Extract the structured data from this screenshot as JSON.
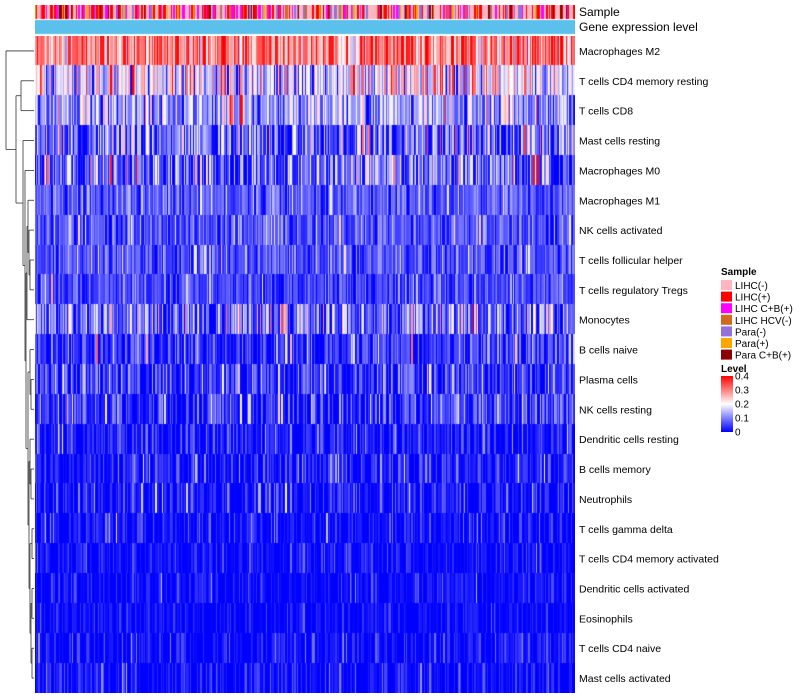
{
  "chart_data": {
    "type": "heatmap",
    "annotations": [
      {
        "name": "Sample"
      },
      {
        "name": "Gene expression level"
      }
    ],
    "rows": [
      {
        "label": "Macrophages M2",
        "mean": 0.3,
        "spread": 0.1
      },
      {
        "label": "T cells CD4 memory resting",
        "mean": 0.17,
        "spread": 0.14
      },
      {
        "label": "T cells CD8",
        "mean": 0.12,
        "spread": 0.09
      },
      {
        "label": "Mast cells resting",
        "mean": 0.07,
        "spread": 0.12
      },
      {
        "label": "Macrophages M0",
        "mean": 0.06,
        "spread": 0.12
      },
      {
        "label": "Macrophages M1",
        "mean": 0.07,
        "spread": 0.06
      },
      {
        "label": "NK cells activated",
        "mean": 0.06,
        "spread": 0.06
      },
      {
        "label": "T cells follicular helper",
        "mean": 0.06,
        "spread": 0.06
      },
      {
        "label": "T cells regulatory  Tregs",
        "mean": 0.05,
        "spread": 0.05
      },
      {
        "label": "Monocytes",
        "mean": 0.08,
        "spread": 0.12
      },
      {
        "label": "B cells naive",
        "mean": 0.03,
        "spread": 0.08
      },
      {
        "label": "Plasma cells",
        "mean": 0.04,
        "spread": 0.08
      },
      {
        "label": "NK cells resting",
        "mean": 0.03,
        "spread": 0.09
      },
      {
        "label": "Dendritic cells resting",
        "mean": 0.015,
        "spread": 0.06
      },
      {
        "label": "B cells memory",
        "mean": 0.015,
        "spread": 0.06
      },
      {
        "label": "Neutrophils",
        "mean": 0.01,
        "spread": 0.06
      },
      {
        "label": "T cells gamma delta",
        "mean": 0.005,
        "spread": 0.05
      },
      {
        "label": "T cells CD4 memory activated",
        "mean": 0.005,
        "spread": 0.04
      },
      {
        "label": "Dendritic cells activated",
        "mean": 0.004,
        "spread": 0.04
      },
      {
        "label": "Eosinophils",
        "mean": 0.003,
        "spread": 0.03
      },
      {
        "label": "T cells CD4 naive",
        "mean": 0.003,
        "spread": 0.05
      },
      {
        "label": "Mast cells activated",
        "mean": 0.003,
        "spread": 0.05
      }
    ],
    "n_columns": 420,
    "color_scale": {
      "title": "Level",
      "domain": [
        0,
        0.4
      ],
      "ticks": [
        "0.4",
        "0.3",
        "0.2",
        "0.1",
        "0"
      ],
      "stops": [
        {
          "value": 0,
          "color": "#0000ff"
        },
        {
          "value": 0.2,
          "color": "#ffffff"
        },
        {
          "value": 0.4,
          "color": "#ff0000"
        }
      ]
    },
    "sample_legend": {
      "title": "Sample",
      "items": [
        {
          "label": "LIHC(-)",
          "color": "#ffb6c1"
        },
        {
          "label": "LIHC(+)",
          "color": "#ff0000"
        },
        {
          "label": "LIHC C+B(+)",
          "color": "#ff00ff"
        },
        {
          "label": "LIHC HCV(-)",
          "color": "#d2691e"
        },
        {
          "label": "Para(-)",
          "color": "#9370db"
        },
        {
          "label": "Para(+)",
          "color": "#ffa500"
        },
        {
          "label": "Para C+B(+)",
          "color": "#8b0000"
        }
      ]
    },
    "gene_expression_color": "#5bc0eb"
  }
}
